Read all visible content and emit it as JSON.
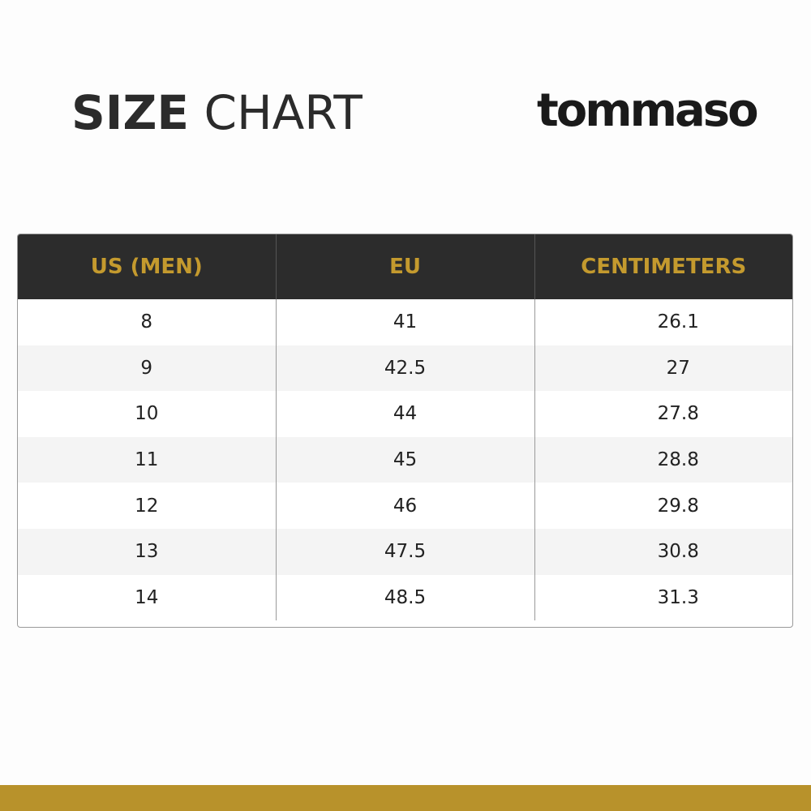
{
  "header": {
    "title_bold": "SIZE",
    "title_light": "CHART",
    "brand_logo": "tommaso"
  },
  "table": {
    "columns": [
      "US (MEN)",
      "EU",
      "CENTIMETERS"
    ],
    "rows": [
      [
        "8",
        "41",
        "26.1"
      ],
      [
        "9",
        "42.5",
        "27"
      ],
      [
        "10",
        "44",
        "27.8"
      ],
      [
        "11",
        "45",
        "28.8"
      ],
      [
        "12",
        "46",
        "29.8"
      ],
      [
        "13",
        "47.5",
        "30.8"
      ],
      [
        "14",
        "48.5",
        "31.3"
      ]
    ]
  },
  "colors": {
    "accent_gold": "#c49a2e",
    "bar_gold": "#b8922b",
    "header_dark": "#2c2c2c"
  }
}
